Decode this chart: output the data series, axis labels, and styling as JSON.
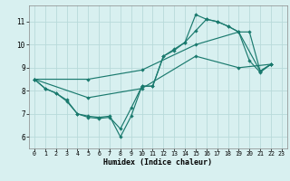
{
  "xlabel": "Humidex (Indice chaleur)",
  "background_color": "#d8f0f0",
  "grid_color": "#b8dada",
  "line_color": "#1a7a6e",
  "xlim": [
    -0.5,
    23.5
  ],
  "ylim": [
    5.5,
    11.7
  ],
  "xticks": [
    0,
    1,
    2,
    3,
    4,
    5,
    6,
    7,
    8,
    9,
    10,
    11,
    12,
    13,
    14,
    15,
    16,
    17,
    18,
    19,
    20,
    21,
    22,
    23
  ],
  "yticks": [
    6,
    7,
    8,
    9,
    10,
    11
  ],
  "series": [
    {
      "x": [
        0,
        1,
        2,
        3,
        4,
        5,
        6,
        7,
        8,
        9,
        10,
        11,
        12,
        13,
        14,
        15,
        16,
        17,
        18,
        19,
        20,
        21,
        22
      ],
      "y": [
        8.5,
        8.1,
        7.9,
        7.6,
        7.0,
        6.9,
        6.85,
        6.9,
        6.0,
        6.9,
        8.2,
        8.2,
        9.5,
        9.8,
        10.1,
        11.3,
        11.1,
        11.0,
        10.8,
        10.55,
        9.3,
        8.8,
        9.15
      ]
    },
    {
      "x": [
        0,
        1,
        2,
        3,
        4,
        5,
        6,
        7,
        8,
        9,
        10,
        11,
        12,
        13,
        14,
        15,
        16,
        17,
        18,
        19,
        20,
        21,
        22
      ],
      "y": [
        8.5,
        8.1,
        7.9,
        7.55,
        7.0,
        6.85,
        6.8,
        6.85,
        6.35,
        7.25,
        8.2,
        8.2,
        9.5,
        9.75,
        10.1,
        10.6,
        11.1,
        11.0,
        10.8,
        10.55,
        10.55,
        8.85,
        9.15
      ]
    },
    {
      "x": [
        0,
        5,
        10,
        15,
        19,
        21,
        22
      ],
      "y": [
        8.5,
        8.5,
        8.9,
        10.0,
        10.55,
        8.85,
        9.15
      ]
    },
    {
      "x": [
        0,
        5,
        10,
        15,
        19,
        22
      ],
      "y": [
        8.5,
        7.7,
        8.1,
        9.5,
        9.0,
        9.15
      ]
    }
  ]
}
